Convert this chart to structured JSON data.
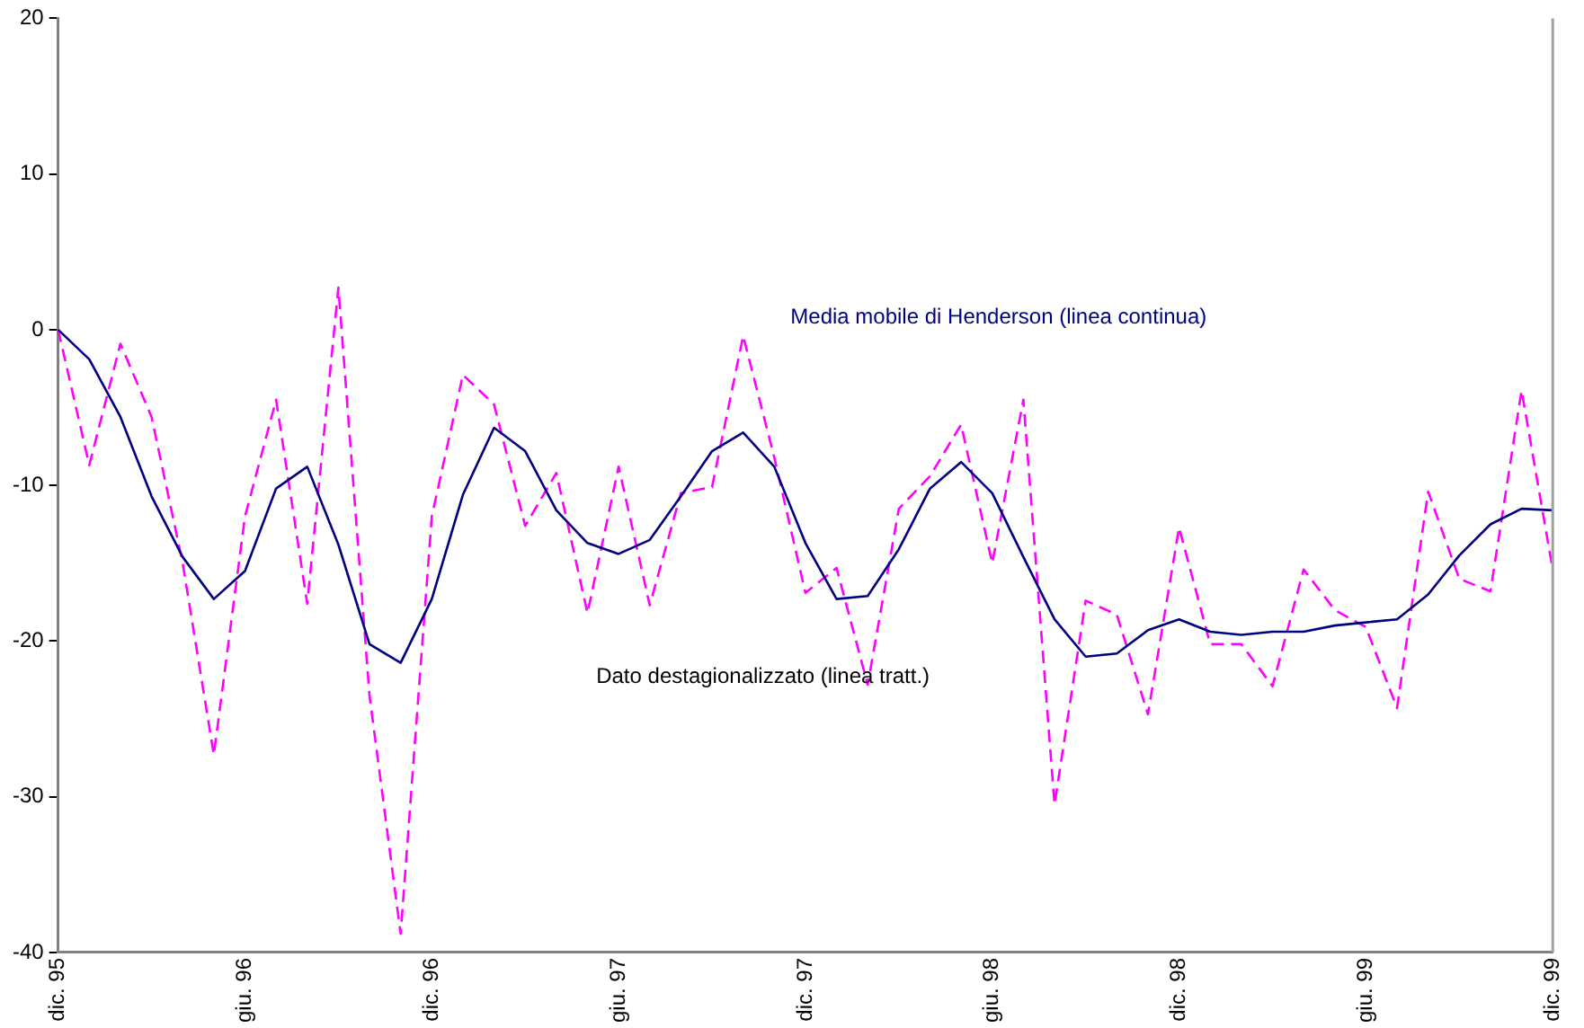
{
  "chart_data": {
    "type": "line",
    "categories": [
      "dic. 95",
      null,
      null,
      null,
      null,
      null,
      "giu. 96",
      null,
      null,
      null,
      null,
      null,
      "dic. 96",
      null,
      null,
      null,
      null,
      null,
      "giu. 97",
      null,
      null,
      null,
      null,
      null,
      "dic. 97",
      null,
      null,
      null,
      null,
      null,
      "giu. 98",
      null,
      null,
      null,
      null,
      null,
      "dic. 98",
      null,
      null,
      null,
      null,
      null,
      "giu. 99",
      null,
      null,
      null,
      null,
      null,
      "dic. 99"
    ],
    "series": [
      {
        "name": "Media mobile di Henderson (linea continua)",
        "color": "#000080",
        "line_style": "solid",
        "values": [
          0,
          -1.9,
          -5.6,
          -10.7,
          -14.6,
          -17.3,
          -15.5,
          -10.2,
          -8.8,
          -13.8,
          -20.2,
          -21.4,
          -17.3,
          -10.6,
          -6.3,
          -7.8,
          -11.6,
          -13.7,
          -14.4,
          -13.5,
          -10.7,
          -7.8,
          -6.6,
          -8.8,
          -13.7,
          -17.3,
          -17.1,
          -14.1,
          -10.2,
          -8.5,
          -10.5,
          -14.6,
          -18.6,
          -21.0,
          -20.8,
          -19.3,
          -18.6,
          -19.4,
          -19.6,
          -19.4,
          -19.4,
          -19.0,
          -18.8,
          -18.6,
          -17.0,
          -14.5,
          -12.5,
          -11.5,
          -11.6
        ]
      },
      {
        "name": "Dato destagionalizzato (linea tratt.)",
        "color": "#ff00ff",
        "line_style": "dashed",
        "values": [
          0,
          -8.7,
          -0.9,
          -5.6,
          -15.0,
          -27.3,
          -12.0,
          -4.5,
          -17.6,
          2.7,
          -23.5,
          -38.8,
          -12.0,
          -2.9,
          -4.8,
          -12.6,
          -9.2,
          -18.2,
          -8.8,
          -17.7,
          -10.5,
          -10.1,
          -0.4,
          -8.2,
          -16.9,
          -15.3,
          -22.8,
          -11.5,
          -9.4,
          -6.1,
          -15.0,
          -4.5,
          -30.5,
          -17.4,
          -18.3,
          -24.7,
          -12.7,
          -20.2,
          -20.2,
          -22.9,
          -15.4,
          -18.0,
          -19.1,
          -24.3,
          -10.4,
          -16.0,
          -16.8,
          -3.9,
          -15.4
        ]
      }
    ],
    "ylim": [
      -40,
      20
    ],
    "yticks": [
      -40,
      -30,
      -20,
      -10,
      0,
      10,
      20
    ],
    "grid": false,
    "legend": false,
    "marker": "none"
  }
}
